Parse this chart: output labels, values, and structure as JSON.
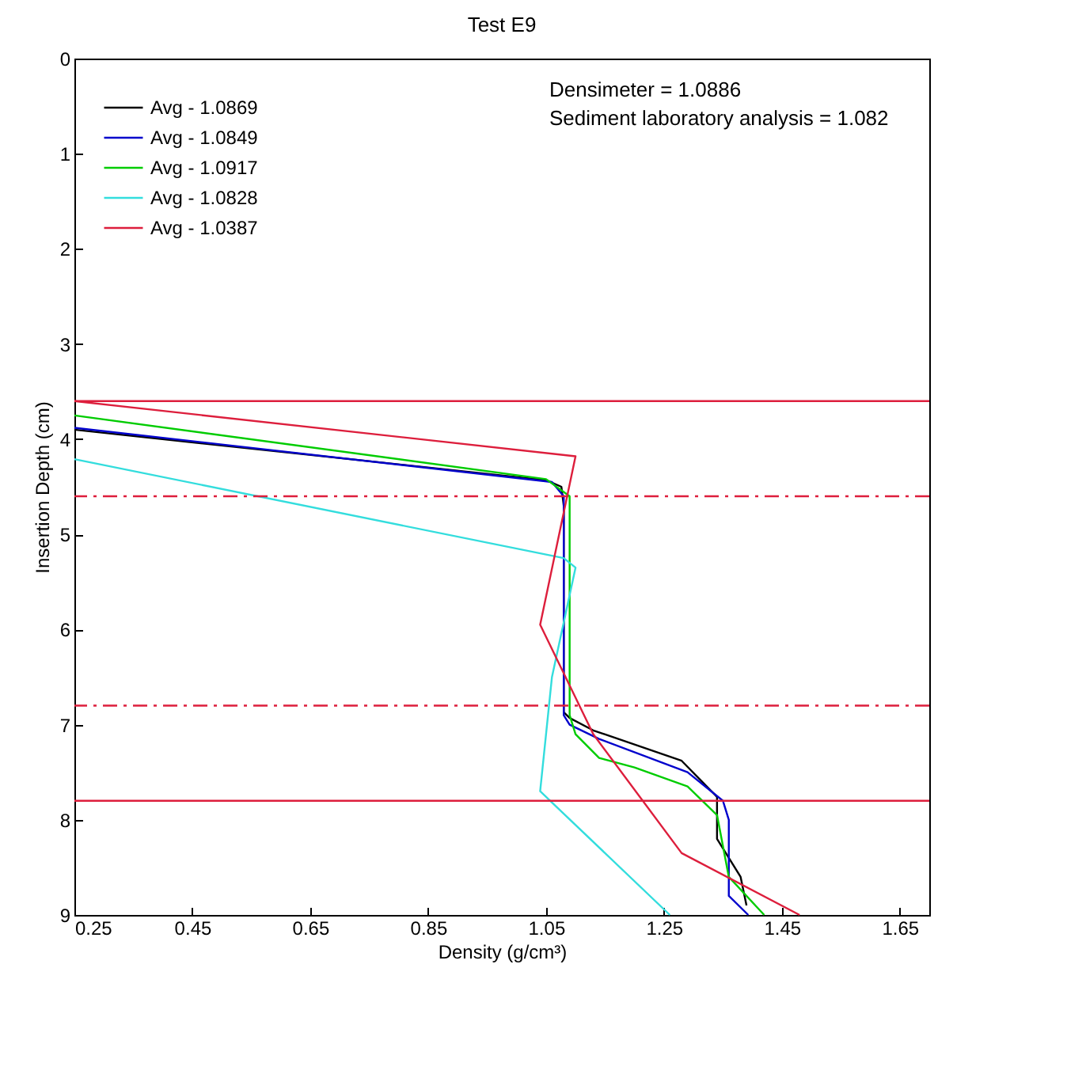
{
  "chart_data": {
    "type": "line",
    "title": "Test E9",
    "xlabel": "Density (g/cm³)",
    "ylabel": "Insertion Depth (cm)",
    "annotations": [
      "Densimeter = 1.0886",
      "Sediment laboratory analysis = 1.082"
    ],
    "xlim": [
      0.25,
      1.7
    ],
    "xticks": [
      0.25,
      0.45,
      0.65,
      0.85,
      1.05,
      1.25,
      1.45,
      1.65
    ],
    "ylim": [
      9,
      0
    ],
    "yticks": [
      0,
      1,
      2,
      3,
      4,
      5,
      6,
      7,
      8,
      9
    ],
    "grid": false,
    "legend": "top left",
    "line_style": "solid",
    "marker": "none",
    "series": [
      {
        "name": "Avg - 1.0869",
        "color": "#000000",
        "x": [
          0.25,
          1.05,
          1.076,
          1.08,
          1.08,
          1.09,
          1.13,
          1.28,
          1.34,
          1.34,
          1.38,
          1.39
        ],
        "values": [
          3.9,
          4.43,
          4.5,
          4.7,
          6.87,
          6.93,
          7.06,
          7.38,
          7.76,
          8.2,
          8.6,
          8.9
        ]
      },
      {
        "name": "Avg - 1.0849",
        "color": "#0000cc",
        "x": [
          0.25,
          1.06,
          1.08,
          1.08,
          1.09,
          1.14,
          1.29,
          1.35,
          1.36,
          1.36,
          1.393
        ],
        "values": [
          3.88,
          4.45,
          4.6,
          6.9,
          7.0,
          7.15,
          7.5,
          7.8,
          8.0,
          8.8,
          9.0
        ]
      },
      {
        "name": "Avg - 1.0917",
        "color": "#00cc00",
        "x": [
          0.25,
          1.05,
          1.09,
          1.09,
          1.1,
          1.14,
          1.2,
          1.29,
          1.34,
          1.36,
          1.42
        ],
        "values": [
          3.75,
          4.42,
          4.6,
          6.9,
          7.1,
          7.35,
          7.45,
          7.65,
          7.95,
          8.6,
          9.0
        ]
      },
      {
        "name": "Avg - 1.0828",
        "color": "#33dddd",
        "x": [
          0.25,
          1.08,
          1.1,
          1.06,
          1.04,
          1.26
        ],
        "values": [
          4.21,
          5.25,
          5.35,
          6.5,
          7.7,
          9.0
        ]
      },
      {
        "name": "Avg - 1.0387",
        "color": "#dd1e3c",
        "x": [
          0.25,
          1.1,
          1.04,
          1.13,
          1.28,
          1.48
        ],
        "values": [
          3.6,
          4.18,
          5.95,
          7.1,
          8.35,
          9.0
        ]
      }
    ],
    "ref_lines": [
      {
        "axis": "y",
        "value": 3.6,
        "color": "#dd1e3c",
        "line_style": "solid"
      },
      {
        "axis": "y",
        "value": 4.6,
        "color": "#dd1e3c",
        "line_style": "dashed"
      },
      {
        "axis": "y",
        "value": 6.8,
        "color": "#dd1e3c",
        "line_style": "dashed"
      },
      {
        "axis": "y",
        "value": 7.8,
        "color": "#dd1e3c",
        "line_style": "solid"
      }
    ]
  }
}
